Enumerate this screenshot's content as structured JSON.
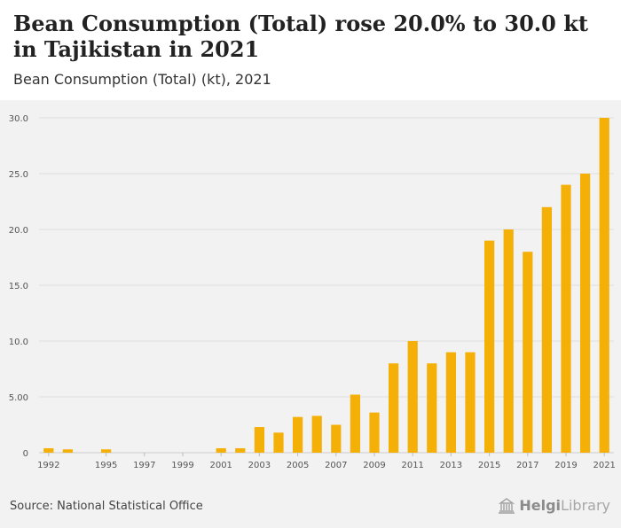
{
  "header": {
    "title": "Bean Consumption (Total) rose 20.0% to 30.0 kt in Tajikistan in 2021",
    "subtitle": "Bean Consumption (Total) (kt), 2021"
  },
  "footer": {
    "source": "Source: National Statistical Office",
    "logo_bold": "Helgi",
    "logo_light": "Library"
  },
  "colors": {
    "bar": "#f5b008",
    "grid": "#dddddd",
    "axis_text": "#555555"
  },
  "chart_data": {
    "type": "bar",
    "title": "Bean Consumption (Total) (kt), 2021",
    "xlabel": "",
    "ylabel": "",
    "ylim": [
      0,
      30
    ],
    "grid": true,
    "y_ticks": [
      0,
      5,
      10,
      15,
      20,
      25,
      30
    ],
    "y_tick_labels": [
      "0",
      "5.00",
      "10.0",
      "15.0",
      "20.0",
      "25.0",
      "30.0"
    ],
    "categories": [
      "1992",
      "1993",
      "1994",
      "1995",
      "1996",
      "1997",
      "1998",
      "1999",
      "2000",
      "2001",
      "2002",
      "2003",
      "2004",
      "2005",
      "2006",
      "2007",
      "2008",
      "2009",
      "2010",
      "2011",
      "2012",
      "2013",
      "2014",
      "2015",
      "2016",
      "2017",
      "2018",
      "2019",
      "2020",
      "2021"
    ],
    "x_tick_labels": [
      "1992",
      "1995",
      "1997",
      "1999",
      "2001",
      "2003",
      "2005",
      "2007",
      "2009",
      "2011",
      "2013",
      "2015",
      "2017",
      "2019",
      "2021"
    ],
    "values": [
      0.4,
      0.3,
      null,
      0.3,
      null,
      null,
      null,
      null,
      null,
      0.4,
      0.4,
      2.3,
      1.8,
      3.2,
      3.3,
      2.5,
      5.2,
      3.6,
      8.0,
      10.0,
      8.0,
      9.0,
      9.0,
      19.0,
      20.0,
      18.0,
      22.0,
      24.0,
      25.0,
      30.0
    ]
  }
}
